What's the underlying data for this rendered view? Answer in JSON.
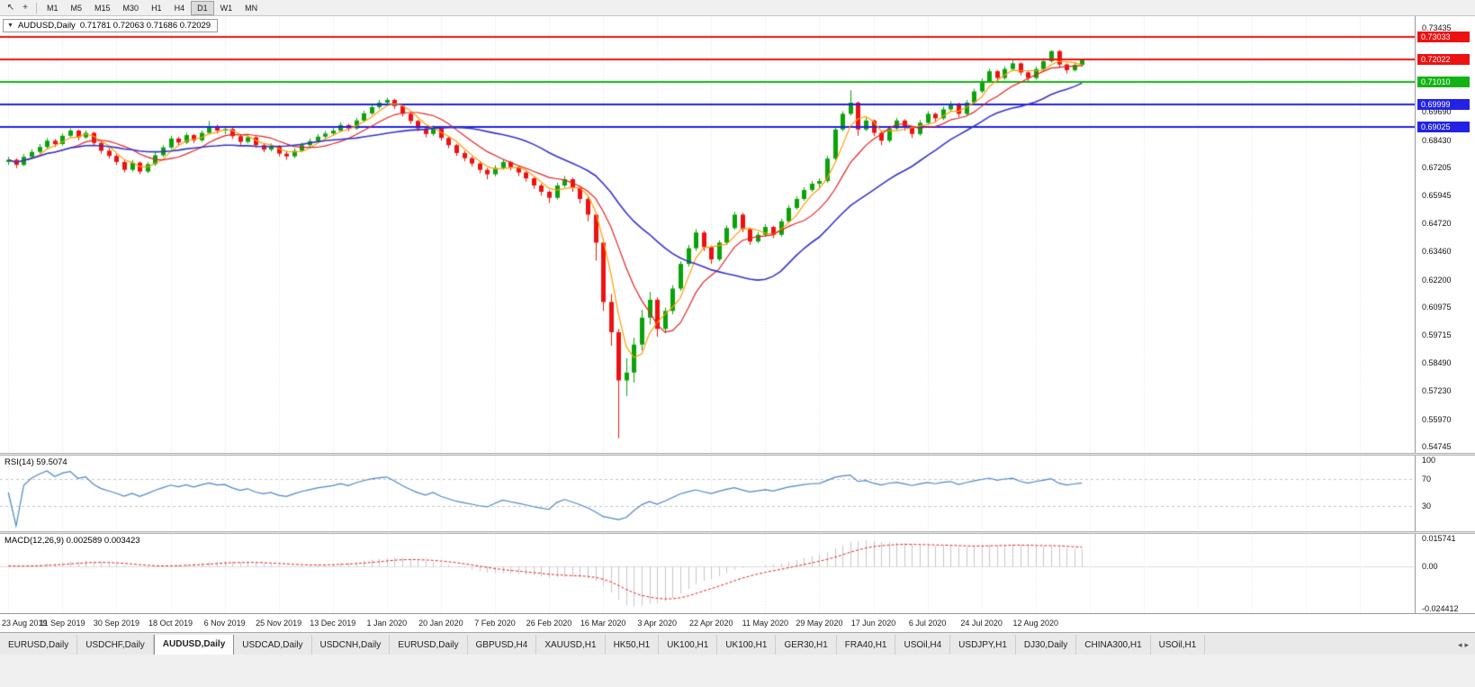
{
  "toolbar": {
    "icons": [
      {
        "name": "cursor-icon",
        "glyph": "↖"
      },
      {
        "name": "crosshair-icon",
        "glyph": "+"
      }
    ],
    "timeframes": [
      {
        "label": "M1",
        "active": false
      },
      {
        "label": "M5",
        "active": false
      },
      {
        "label": "M15",
        "active": false
      },
      {
        "label": "M30",
        "active": false
      },
      {
        "label": "H1",
        "active": false
      },
      {
        "label": "H4",
        "active": false
      },
      {
        "label": "D1",
        "active": true
      },
      {
        "label": "W1",
        "active": false
      },
      {
        "label": "MN",
        "active": false
      }
    ]
  },
  "chart": {
    "title": "AUDUSD,Daily",
    "ohlc": "0.71781 0.72063 0.71686 0.72029",
    "dropdown_icon": "▼"
  },
  "chart_data": {
    "type": "candlestick",
    "symbol": "AUDUSD",
    "timeframe": "Daily",
    "title": "AUDUSD,Daily 0.71781 0.72063 0.71686 0.72029",
    "y_range": [
      0.54745,
      0.73435
    ],
    "up_color": "#0aa30a",
    "down_color": "#ee1111",
    "x_label_step": 7,
    "total_slots": 182,
    "x_labels": [
      "23 Aug 2019",
      "11 Sep 2019",
      "30 Sep 2019",
      "18 Oct 2019",
      "6 Nov 2019",
      "25 Nov 2019",
      "13 Dec 2019",
      "1 Jan 2020",
      "20 Jan 2020",
      "7 Feb 2020",
      "26 Feb 2020",
      "16 Mar 2020",
      "3 Apr 2020",
      "22 Apr 2020",
      "11 May 2020",
      "29 May 2020",
      "17 Jun 2020",
      "6 Jul 2020",
      "24 Jul 2020",
      "12 Aug 2020"
    ],
    "y_ticks": [
      "0.73435",
      "0.69690",
      "0.68430",
      "0.67205",
      "0.65945",
      "0.64720",
      "0.63460",
      "0.62200",
      "0.60975",
      "0.59715",
      "0.58490",
      "0.57230",
      "0.55970",
      "0.54745"
    ],
    "price_lines": [
      {
        "value": 0.73033,
        "label": "0.73033",
        "color": "#ee1111"
      },
      {
        "value": 0.72022,
        "label": "0.72022",
        "color": "#ee1111"
      },
      {
        "value": 0.7101,
        "label": "0.71010",
        "color": "#13b313"
      },
      {
        "value": 0.69999,
        "label": "0.69999",
        "color": "#2222e6"
      },
      {
        "value": 0.69025,
        "label": "0.69025",
        "color": "#2222e6"
      }
    ],
    "moving_averages": [
      {
        "name": "fast-ma",
        "period": 4,
        "color": "#ff9c00"
      },
      {
        "name": "mid-ma",
        "period": 9,
        "color": "#e32222"
      },
      {
        "name": "slow-ma",
        "period": 22,
        "color": "#3333cc"
      }
    ],
    "rsi": {
      "label": "RSI(14) 59.5074",
      "period": 14,
      "color": "#4a86c8",
      "levels": [
        70,
        30
      ],
      "ticks": [
        {
          "v": 100,
          "label": "100"
        },
        {
          "v": 70,
          "label": "70"
        },
        {
          "v": 30,
          "label": "30"
        }
      ]
    },
    "macd": {
      "label": "MACD(12,26,9) 0.002589 0.003423",
      "fast": 12,
      "slow": 26,
      "signal": 9,
      "hist_color": "#c6c6c6",
      "signal_color": "#e32222",
      "range": [
        -0.024412,
        0.015741
      ],
      "ticks": [
        {
          "v": 0.015741,
          "label": "0.015741"
        },
        {
          "v": 0,
          "label": "0.00"
        },
        {
          "v": -0.024412,
          "label": "-0.024412"
        }
      ]
    },
    "candles": [
      [
        0.6745,
        0.6768,
        0.6732,
        0.6755
      ],
      [
        0.6755,
        0.6762,
        0.6718,
        0.6732
      ],
      [
        0.6732,
        0.678,
        0.6725,
        0.6768
      ],
      [
        0.6768,
        0.6802,
        0.6758,
        0.679
      ],
      [
        0.679,
        0.6825,
        0.6782,
        0.6812
      ],
      [
        0.6812,
        0.6852,
        0.6805,
        0.684
      ],
      [
        0.684,
        0.6848,
        0.6812,
        0.6825
      ],
      [
        0.6825,
        0.6872,
        0.6818,
        0.6862
      ],
      [
        0.6862,
        0.6895,
        0.6855,
        0.6885
      ],
      [
        0.6885,
        0.689,
        0.6842,
        0.6855
      ],
      [
        0.6855,
        0.6886,
        0.6848,
        0.6875
      ],
      [
        0.6875,
        0.688,
        0.682,
        0.683
      ],
      [
        0.683,
        0.6838,
        0.6782,
        0.6795
      ],
      [
        0.6795,
        0.6808,
        0.676,
        0.6772
      ],
      [
        0.6772,
        0.678,
        0.6732,
        0.6745
      ],
      [
        0.6745,
        0.6752,
        0.6698,
        0.671
      ],
      [
        0.671,
        0.6754,
        0.6702,
        0.6742
      ],
      [
        0.6742,
        0.6748,
        0.669,
        0.6702
      ],
      [
        0.6702,
        0.6745,
        0.6695,
        0.6735
      ],
      [
        0.6735,
        0.6788,
        0.6728,
        0.6775
      ],
      [
        0.6775,
        0.682,
        0.6768,
        0.681
      ],
      [
        0.681,
        0.6862,
        0.6802,
        0.685
      ],
      [
        0.685,
        0.6858,
        0.682,
        0.6832
      ],
      [
        0.6832,
        0.6875,
        0.6825,
        0.6865
      ],
      [
        0.6865,
        0.687,
        0.683,
        0.6842
      ],
      [
        0.6842,
        0.6885,
        0.6835,
        0.6875
      ],
      [
        0.6875,
        0.6928,
        0.6868,
        0.6905
      ],
      [
        0.6905,
        0.6912,
        0.6872,
        0.6885
      ],
      [
        0.6885,
        0.6902,
        0.6868,
        0.6892
      ],
      [
        0.6892,
        0.6898,
        0.6848,
        0.686
      ],
      [
        0.686,
        0.6868,
        0.6822,
        0.6835
      ],
      [
        0.6835,
        0.6866,
        0.6828,
        0.6855
      ],
      [
        0.6855,
        0.686,
        0.6808,
        0.682
      ],
      [
        0.682,
        0.6828,
        0.6788,
        0.68
      ],
      [
        0.68,
        0.6828,
        0.6792,
        0.6815
      ],
      [
        0.6815,
        0.682,
        0.677,
        0.6782
      ],
      [
        0.6782,
        0.6795,
        0.6755,
        0.677
      ],
      [
        0.677,
        0.6806,
        0.6762,
        0.6795
      ],
      [
        0.6795,
        0.6832,
        0.6788,
        0.682
      ],
      [
        0.682,
        0.685,
        0.6812,
        0.6838
      ],
      [
        0.6838,
        0.687,
        0.683,
        0.6858
      ],
      [
        0.6858,
        0.6884,
        0.685,
        0.6872
      ],
      [
        0.6872,
        0.6896,
        0.6862,
        0.6885
      ],
      [
        0.6885,
        0.6922,
        0.6878,
        0.691
      ],
      [
        0.691,
        0.6915,
        0.6882,
        0.6895
      ],
      [
        0.6895,
        0.6942,
        0.6888,
        0.693
      ],
      [
        0.693,
        0.6974,
        0.6922,
        0.6962
      ],
      [
        0.6962,
        0.7002,
        0.6955,
        0.699
      ],
      [
        0.699,
        0.7022,
        0.6982,
        0.701
      ],
      [
        0.701,
        0.7032,
        0.7,
        0.7022
      ],
      [
        0.7022,
        0.7028,
        0.6982,
        0.6995
      ],
      [
        0.6995,
        0.7,
        0.6948,
        0.696
      ],
      [
        0.696,
        0.6968,
        0.6915,
        0.6928
      ],
      [
        0.6928,
        0.6934,
        0.6882,
        0.6895
      ],
      [
        0.6895,
        0.6902,
        0.6855,
        0.687
      ],
      [
        0.687,
        0.6908,
        0.6862,
        0.6895
      ],
      [
        0.6895,
        0.69,
        0.684,
        0.6852
      ],
      [
        0.6852,
        0.6858,
        0.6806,
        0.682
      ],
      [
        0.682,
        0.6826,
        0.6772,
        0.6785
      ],
      [
        0.6785,
        0.6795,
        0.6748,
        0.6762
      ],
      [
        0.6762,
        0.677,
        0.6725,
        0.6738
      ],
      [
        0.6738,
        0.6745,
        0.6695,
        0.671
      ],
      [
        0.671,
        0.6718,
        0.6668,
        0.669
      ],
      [
        0.669,
        0.673,
        0.668,
        0.6718
      ],
      [
        0.6718,
        0.6758,
        0.671,
        0.6745
      ],
      [
        0.6745,
        0.675,
        0.6708,
        0.6722
      ],
      [
        0.6722,
        0.6728,
        0.6682,
        0.6698
      ],
      [
        0.6698,
        0.6704,
        0.6658,
        0.6672
      ],
      [
        0.6672,
        0.6678,
        0.6625,
        0.664
      ],
      [
        0.664,
        0.6648,
        0.6595,
        0.6612
      ],
      [
        0.6612,
        0.6618,
        0.6562,
        0.6585
      ],
      [
        0.6585,
        0.6652,
        0.6578,
        0.664
      ],
      [
        0.664,
        0.6682,
        0.6632,
        0.6668
      ],
      [
        0.6668,
        0.6675,
        0.6612,
        0.663
      ],
      [
        0.663,
        0.6638,
        0.656,
        0.658
      ],
      [
        0.658,
        0.6588,
        0.648,
        0.651
      ],
      [
        0.651,
        0.652,
        0.6305,
        0.6385
      ],
      [
        0.6385,
        0.64,
        0.608,
        0.612
      ],
      [
        0.612,
        0.6155,
        0.5925,
        0.5985
      ],
      [
        0.5985,
        0.6,
        0.5512,
        0.577
      ],
      [
        0.577,
        0.587,
        0.57,
        0.5805
      ],
      [
        0.5805,
        0.596,
        0.576,
        0.593
      ],
      [
        0.593,
        0.6085,
        0.5905,
        0.605
      ],
      [
        0.605,
        0.6165,
        0.602,
        0.613
      ],
      [
        0.613,
        0.614,
        0.5965,
        0.6
      ],
      [
        0.6,
        0.6095,
        0.598,
        0.608
      ],
      [
        0.608,
        0.6195,
        0.6065,
        0.618
      ],
      [
        0.618,
        0.6302,
        0.617,
        0.629
      ],
      [
        0.629,
        0.6375,
        0.6278,
        0.636
      ],
      [
        0.636,
        0.6445,
        0.6348,
        0.643
      ],
      [
        0.643,
        0.6438,
        0.6348,
        0.6365
      ],
      [
        0.6365,
        0.6372,
        0.629,
        0.631
      ],
      [
        0.631,
        0.6395,
        0.6302,
        0.6385
      ],
      [
        0.6385,
        0.6462,
        0.6378,
        0.645
      ],
      [
        0.645,
        0.6522,
        0.6442,
        0.651
      ],
      [
        0.651,
        0.6518,
        0.6432,
        0.6445
      ],
      [
        0.6445,
        0.6452,
        0.6375,
        0.639
      ],
      [
        0.639,
        0.6432,
        0.6382,
        0.642
      ],
      [
        0.642,
        0.6468,
        0.6412,
        0.6455
      ],
      [
        0.6455,
        0.646,
        0.6405,
        0.642
      ],
      [
        0.642,
        0.6492,
        0.6412,
        0.648
      ],
      [
        0.648,
        0.6552,
        0.6472,
        0.654
      ],
      [
        0.654,
        0.6592,
        0.6532,
        0.658
      ],
      [
        0.658,
        0.6632,
        0.6572,
        0.662
      ],
      [
        0.662,
        0.666,
        0.6612,
        0.6648
      ],
      [
        0.6648,
        0.6672,
        0.6632,
        0.666
      ],
      [
        0.666,
        0.6772,
        0.6652,
        0.676
      ],
      [
        0.676,
        0.6902,
        0.6752,
        0.689
      ],
      [
        0.689,
        0.6972,
        0.6882,
        0.696
      ],
      [
        0.696,
        0.7065,
        0.6952,
        0.701
      ],
      [
        0.701,
        0.7015,
        0.6862,
        0.689
      ],
      [
        0.689,
        0.6942,
        0.6882,
        0.693
      ],
      [
        0.693,
        0.6935,
        0.686,
        0.6875
      ],
      [
        0.6875,
        0.6882,
        0.682,
        0.684
      ],
      [
        0.684,
        0.6906,
        0.6832,
        0.6895
      ],
      [
        0.6895,
        0.6942,
        0.6888,
        0.693
      ],
      [
        0.693,
        0.6936,
        0.6885,
        0.69
      ],
      [
        0.69,
        0.6906,
        0.6852,
        0.687
      ],
      [
        0.687,
        0.6932,
        0.6862,
        0.692
      ],
      [
        0.692,
        0.6972,
        0.6912,
        0.696
      ],
      [
        0.696,
        0.6965,
        0.6922,
        0.694
      ],
      [
        0.694,
        0.6992,
        0.6932,
        0.698
      ],
      [
        0.698,
        0.7016,
        0.6972,
        0.7005
      ],
      [
        0.7005,
        0.701,
        0.6945,
        0.696
      ],
      [
        0.696,
        0.7022,
        0.6952,
        0.701
      ],
      [
        0.701,
        0.7072,
        0.7002,
        0.706
      ],
      [
        0.706,
        0.7118,
        0.7052,
        0.7105
      ],
      [
        0.7105,
        0.7162,
        0.7098,
        0.715
      ],
      [
        0.715,
        0.7155,
        0.7105,
        0.712
      ],
      [
        0.712,
        0.7172,
        0.7112,
        0.716
      ],
      [
        0.716,
        0.7198,
        0.7152,
        0.7185
      ],
      [
        0.7185,
        0.719,
        0.7132,
        0.7145
      ],
      [
        0.7145,
        0.715,
        0.7102,
        0.712
      ],
      [
        0.712,
        0.7172,
        0.7112,
        0.716
      ],
      [
        0.716,
        0.7208,
        0.7152,
        0.7195
      ],
      [
        0.7195,
        0.7243,
        0.7188,
        0.724
      ],
      [
        0.724,
        0.7245,
        0.7165,
        0.718
      ],
      [
        0.718,
        0.7186,
        0.714,
        0.7155
      ],
      [
        0.7155,
        0.719,
        0.7148,
        0.7178
      ],
      [
        0.7178,
        0.7206,
        0.7169,
        0.7203
      ]
    ]
  },
  "tabs": {
    "scroll_left": "◂",
    "scroll_right": "▸",
    "items": [
      {
        "label": "EURUSD,Daily",
        "active": false
      },
      {
        "label": "USDCHF,Daily",
        "active": false
      },
      {
        "label": "AUDUSD,Daily",
        "active": true
      },
      {
        "label": "USDCAD,Daily",
        "active": false
      },
      {
        "label": "USDCNH,Daily",
        "active": false
      },
      {
        "label": "EURUSD,Daily",
        "active": false
      },
      {
        "label": "GBPUSD,H4",
        "active": false
      },
      {
        "label": "XAUUSD,H1",
        "active": false
      },
      {
        "label": "HK50,H1",
        "active": false
      },
      {
        "label": "UK100,H1",
        "active": false
      },
      {
        "label": "UK100,H1",
        "active": false
      },
      {
        "label": "GER30,H1",
        "active": false
      },
      {
        "label": "FRA40,H1",
        "active": false
      },
      {
        "label": "USOil,H4",
        "active": false
      },
      {
        "label": "USDJPY,H1",
        "active": false
      },
      {
        "label": "DJ30,Daily",
        "active": false
      },
      {
        "label": "CHINA300,H1",
        "active": false
      },
      {
        "label": "USOil,H1",
        "active": false
      }
    ]
  }
}
